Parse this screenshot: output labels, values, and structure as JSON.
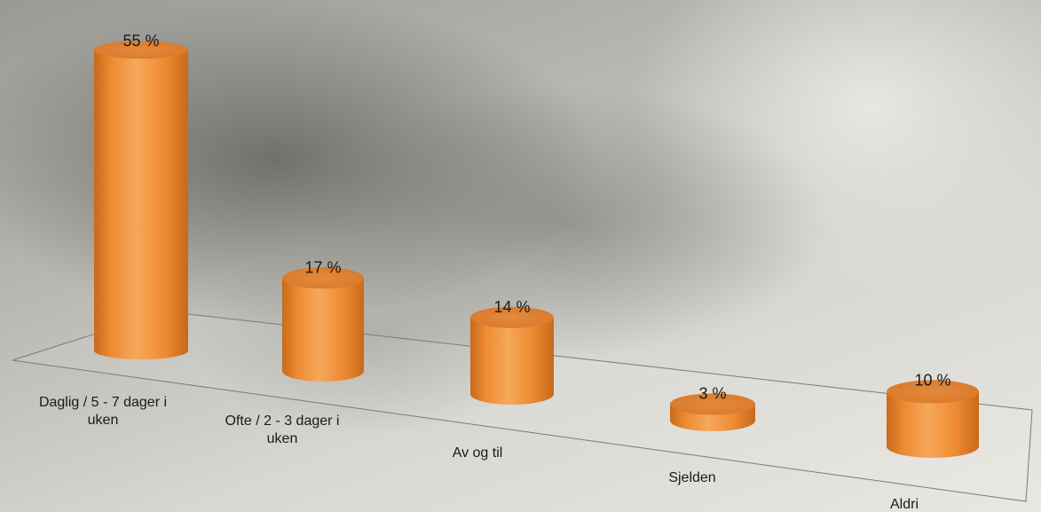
{
  "chart_data": {
    "type": "bar",
    "categories": [
      [
        "Daglig / 5 - 7 dager i",
        "uken"
      ],
      [
        "Ofte / 2 - 3 dager i",
        "uken"
      ],
      [
        "Av og til"
      ],
      [
        "Sjelden"
      ],
      [
        "Aldri"
      ]
    ],
    "values": [
      55,
      17,
      14,
      3,
      10
    ],
    "data_labels": [
      "55 %",
      "17 %",
      "14 %",
      "3 %",
      "10 %"
    ],
    "unit": "%",
    "title": "",
    "xlabel": "",
    "ylabel": "",
    "grid": false,
    "legend": "none",
    "style": "3d-cylinder",
    "colors": {
      "bar_light": "#f6a85a",
      "bar_mid": "#ee8a31",
      "bar_dark": "#c86a1a",
      "bar_top": "#d9782a",
      "floor_line": "#7a7a78",
      "text": "#1a1a1a"
    }
  }
}
